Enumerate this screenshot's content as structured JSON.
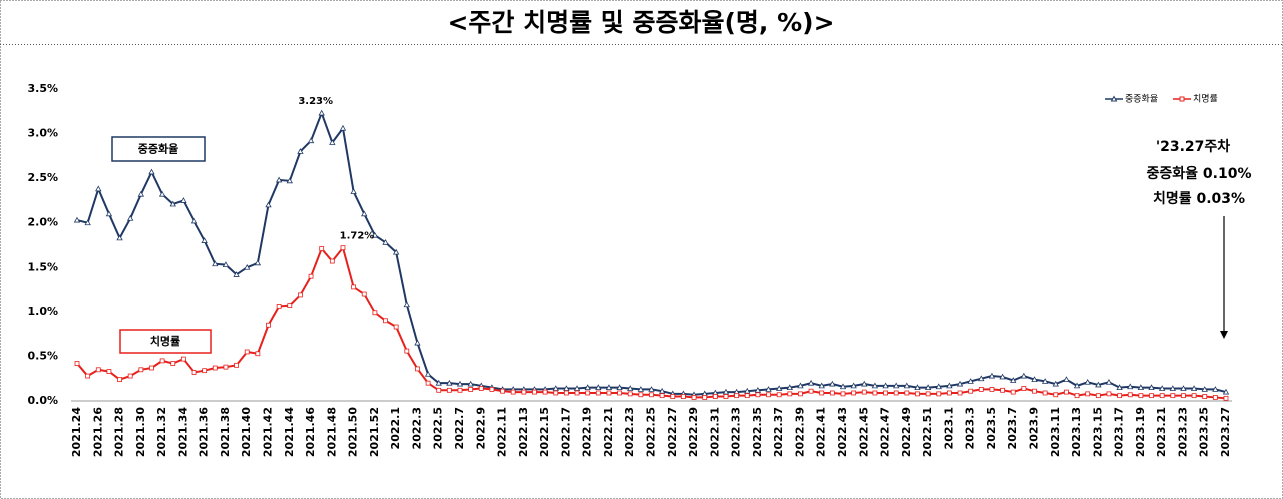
{
  "chart_data": {
    "type": "line",
    "title": "<주간 치명률 및 중증화율(명, %)>",
    "categories": [
      "2021.24",
      null,
      "2021.26",
      null,
      "2021.28",
      null,
      "2021.30",
      null,
      "2021.32",
      null,
      "2021.34",
      null,
      "2021.36",
      null,
      "2021.38",
      null,
      "2021.40",
      null,
      "2021.42",
      null,
      "2021.44",
      null,
      "2021.46",
      null,
      "2021.48",
      null,
      "2021.50",
      null,
      "2021.52",
      null,
      "2022.1",
      null,
      "2022.3",
      null,
      "2022.5",
      null,
      "2022.7",
      null,
      "2022.9",
      null,
      "2022.11",
      null,
      "2022.13",
      null,
      "2022.15",
      null,
      "2022.17",
      null,
      "2022.19",
      null,
      "2022.21",
      null,
      "2022.23",
      null,
      "2022.25",
      null,
      "2022.27",
      null,
      "2022.29",
      null,
      "2022.31",
      null,
      "2022.33",
      null,
      "2022.35",
      null,
      "2022.37",
      null,
      "2022.39",
      null,
      "2022.41",
      null,
      "2022.43",
      null,
      "2022.45",
      null,
      "2022.47",
      null,
      "2022.49",
      null,
      "2022.51",
      null,
      "2023.1",
      null,
      "2023.3",
      null,
      "2023.5",
      null,
      "2023.7",
      null,
      "2023.9",
      null,
      "2023.11",
      null,
      "2023.13",
      null,
      "2023.15",
      null,
      "2023.17",
      null,
      "2023.19",
      null,
      "2023.21",
      null,
      "2023.23",
      null,
      "2023.25",
      null,
      "2023.27"
    ],
    "series": [
      {
        "name": "중증화율",
        "color": "#1f3864",
        "marker": "triangle",
        "values": [
          2.03,
          2.0,
          2.38,
          2.1,
          1.83,
          2.05,
          2.32,
          2.57,
          2.32,
          2.21,
          2.25,
          2.02,
          1.8,
          1.54,
          1.53,
          1.42,
          1.5,
          1.55,
          2.2,
          2.48,
          2.47,
          2.8,
          2.92,
          3.23,
          2.9,
          3.06,
          2.35,
          2.1,
          1.86,
          1.78,
          1.67,
          1.08,
          0.65,
          0.3,
          0.2,
          0.2,
          0.19,
          0.19,
          0.17,
          0.15,
          0.13,
          0.13,
          0.13,
          0.13,
          0.13,
          0.14,
          0.14,
          0.14,
          0.15,
          0.15,
          0.15,
          0.15,
          0.14,
          0.13,
          0.13,
          0.11,
          0.08,
          0.08,
          0.07,
          0.08,
          0.09,
          0.1,
          0.1,
          0.11,
          0.12,
          0.13,
          0.14,
          0.15,
          0.17,
          0.2,
          0.17,
          0.19,
          0.16,
          0.17,
          0.19,
          0.17,
          0.17,
          0.17,
          0.17,
          0.15,
          0.15,
          0.16,
          0.17,
          0.19,
          0.22,
          0.25,
          0.28,
          0.27,
          0.23,
          0.28,
          0.24,
          0.22,
          0.19,
          0.24,
          0.17,
          0.21,
          0.18,
          0.21,
          0.15,
          0.16,
          0.15,
          0.15,
          0.14,
          0.14,
          0.14,
          0.14,
          0.13,
          0.13,
          0.1
        ],
        "value_labels": [
          null,
          null,
          null,
          null,
          null,
          null,
          null,
          null,
          null,
          null,
          null,
          null,
          null,
          null,
          null,
          null,
          null,
          null,
          null,
          null,
          null,
          null,
          null,
          "3.23%",
          null,
          null,
          null,
          null,
          null,
          null,
          null,
          null,
          null,
          null,
          null,
          null,
          null,
          null,
          null,
          null,
          null,
          null,
          null,
          null,
          null,
          null,
          null,
          null,
          null,
          null,
          null,
          null,
          null,
          null,
          null,
          null,
          null,
          null,
          null,
          null,
          null,
          null,
          null,
          null,
          null,
          null,
          null,
          null,
          null,
          null,
          null,
          null,
          null,
          null,
          null,
          null,
          null,
          null,
          null,
          null,
          null,
          null,
          null,
          null,
          null,
          null,
          null,
          null,
          null,
          null,
          null,
          null,
          null,
          null,
          null,
          null,
          null,
          null,
          null,
          null,
          null,
          null,
          null,
          null,
          null,
          null,
          null,
          null,
          null
        ]
      },
      {
        "name": "치명률",
        "color": "#e8201c",
        "marker": "square",
        "values": [
          0.42,
          0.28,
          0.35,
          0.33,
          0.24,
          0.28,
          0.35,
          0.37,
          0.45,
          0.42,
          0.47,
          0.32,
          0.34,
          0.37,
          0.38,
          0.4,
          0.55,
          0.53,
          0.85,
          1.06,
          1.07,
          1.19,
          1.4,
          1.71,
          1.57,
          1.72,
          1.28,
          1.2,
          0.99,
          0.9,
          0.83,
          0.56,
          0.36,
          0.2,
          0.12,
          0.12,
          0.12,
          0.13,
          0.14,
          0.13,
          0.11,
          0.1,
          0.1,
          0.1,
          0.1,
          0.09,
          0.09,
          0.09,
          0.09,
          0.09,
          0.09,
          0.09,
          0.08,
          0.07,
          0.07,
          0.06,
          0.05,
          0.05,
          0.04,
          0.04,
          0.05,
          0.05,
          0.06,
          0.06,
          0.07,
          0.07,
          0.07,
          0.08,
          0.08,
          0.11,
          0.09,
          0.09,
          0.08,
          0.09,
          0.1,
          0.09,
          0.09,
          0.09,
          0.09,
          0.08,
          0.08,
          0.08,
          0.09,
          0.09,
          0.11,
          0.13,
          0.13,
          0.12,
          0.1,
          0.14,
          0.11,
          0.09,
          0.07,
          0.1,
          0.06,
          0.08,
          0.06,
          0.08,
          0.06,
          0.07,
          0.06,
          0.06,
          0.06,
          0.06,
          0.06,
          0.06,
          0.05,
          0.04,
          0.03
        ],
        "value_labels": [
          null,
          null,
          null,
          null,
          null,
          null,
          null,
          null,
          null,
          null,
          null,
          null,
          null,
          null,
          null,
          null,
          null,
          null,
          null,
          null,
          null,
          null,
          null,
          null,
          null,
          "1.72%",
          null,
          null,
          null,
          null,
          null,
          null,
          null,
          null,
          null,
          null,
          null,
          null,
          null,
          null,
          null,
          null,
          null,
          null,
          null,
          null,
          null,
          null,
          null,
          null,
          null,
          null,
          null,
          null,
          null,
          null,
          null,
          null,
          null,
          null,
          null,
          null,
          null,
          null,
          null,
          null,
          null,
          null,
          null,
          null,
          null,
          null,
          null,
          null,
          null,
          null,
          null,
          null,
          null,
          null,
          null,
          null,
          null,
          null,
          null,
          null,
          null,
          null,
          null,
          null,
          null,
          null,
          null,
          null,
          null,
          null,
          null,
          null,
          null,
          null,
          null,
          null,
          null,
          null,
          null,
          null,
          null,
          null,
          null
        ]
      }
    ],
    "ylim": [
      0,
      3.5
    ],
    "yticks": [
      {
        "value": 0,
        "label": "0.0%"
      },
      {
        "value": 0.5,
        "label": "0.5%"
      },
      {
        "value": 1,
        "label": "1.0%"
      },
      {
        "value": 1.5,
        "label": "1.5%"
      },
      {
        "value": 2,
        "label": "2.0%"
      },
      {
        "value": 2.5,
        "label": "2.5%"
      },
      {
        "value": 3,
        "label": "3.0%"
      },
      {
        "value": 3.5,
        "label": "3.5%"
      }
    ],
    "grid": false,
    "legend": "upper right",
    "annotations": [
      "중증화율",
      "치명률",
      "'23.27주차",
      "중증화율 0.10%",
      "치명률 0.03%"
    ]
  }
}
